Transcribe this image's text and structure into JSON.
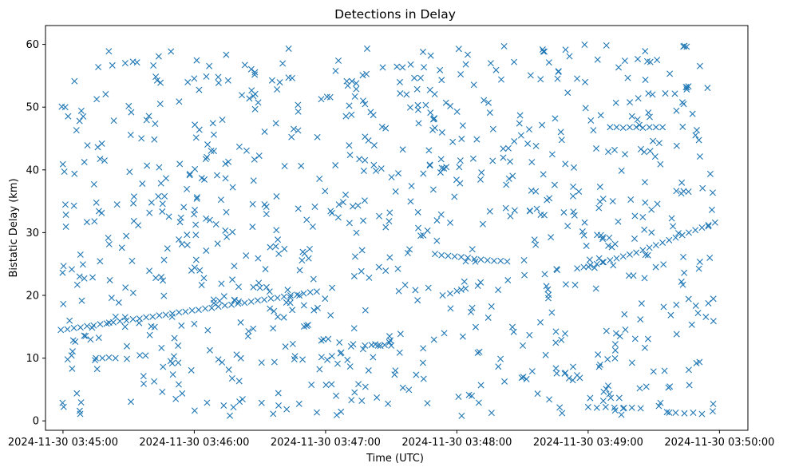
{
  "chart_data": {
    "type": "scatter",
    "title": "Detections in Delay",
    "xlabel": "Time (UTC)",
    "ylabel": "Bistatic Delay (km)",
    "x_ticks": [
      "2024-11-30 03:45:00",
      "2024-11-30 03:46:00",
      "2024-11-30 03:47:00",
      "2024-11-30 03:48:00",
      "2024-11-30 03:49:00",
      "2024-11-30 03:50:00"
    ],
    "y_ticks": [
      0,
      10,
      20,
      30,
      40,
      50,
      60
    ],
    "xlim": [
      "2024-11-30 03:44:52",
      "2024-11-30 03:50:13"
    ],
    "ylim": [
      -1.5,
      63
    ],
    "marker": "x",
    "color": "#1f77b4",
    "grid": false,
    "series": [
      {
        "description": "main target track (bistatic delay rising over time)",
        "points": [
          [
            "03:44:59",
            14.5
          ],
          [
            "03:45:02",
            14.6
          ],
          [
            "03:45:05",
            14.8
          ],
          [
            "03:45:08",
            14.9
          ],
          [
            "03:45:11",
            15.1
          ],
          [
            "03:45:14",
            15.2
          ],
          [
            "03:45:17",
            15.4
          ],
          [
            "03:45:20",
            15.5
          ],
          [
            "03:45:23",
            15.7
          ],
          [
            "03:45:26",
            15.9
          ],
          [
            "03:45:29",
            16.0
          ],
          [
            "03:45:32",
            16.2
          ],
          [
            "03:45:35",
            16.3
          ],
          [
            "03:45:38",
            16.5
          ],
          [
            "03:45:41",
            16.6
          ],
          [
            "03:45:44",
            16.8
          ],
          [
            "03:45:47",
            16.9
          ],
          [
            "03:45:50",
            17.1
          ],
          [
            "03:45:53",
            17.3
          ],
          [
            "03:45:56",
            17.4
          ],
          [
            "03:45:59",
            17.6
          ],
          [
            "03:46:02",
            17.7
          ],
          [
            "03:46:05",
            17.9
          ],
          [
            "03:46:08",
            18.0
          ],
          [
            "03:46:11",
            18.2
          ],
          [
            "03:46:14",
            18.4
          ],
          [
            "03:46:17",
            18.5
          ],
          [
            "03:46:20",
            18.7
          ],
          [
            "03:46:23",
            18.8
          ],
          [
            "03:46:26",
            19.0
          ],
          [
            "03:46:29",
            19.2
          ],
          [
            "03:46:32",
            19.3
          ],
          [
            "03:46:35",
            19.5
          ],
          [
            "03:46:38",
            19.6
          ],
          [
            "03:46:41",
            19.8
          ],
          [
            "03:46:44",
            20.0
          ],
          [
            "03:46:47",
            20.1
          ],
          [
            "03:46:50",
            20.3
          ],
          [
            "03:46:53",
            20.5
          ],
          [
            "03:46:56",
            20.6
          ],
          [
            "03:47:50",
            26.6
          ],
          [
            "03:47:53",
            26.4
          ],
          [
            "03:47:56",
            26.3
          ],
          [
            "03:47:59",
            26.2
          ],
          [
            "03:48:02",
            26.1
          ],
          [
            "03:48:05",
            26.0
          ],
          [
            "03:48:08",
            25.8
          ],
          [
            "03:48:11",
            25.7
          ],
          [
            "03:48:14",
            25.6
          ],
          [
            "03:48:17",
            25.5
          ],
          [
            "03:48:20",
            25.5
          ],
          [
            "03:48:23",
            25.4
          ],
          [
            "03:48:55",
            24.3
          ],
          [
            "03:48:58",
            24.5
          ],
          [
            "03:49:01",
            24.8
          ],
          [
            "03:49:04",
            25.0
          ],
          [
            "03:49:07",
            25.3
          ],
          [
            "03:49:10",
            25.6
          ],
          [
            "03:49:13",
            25.9
          ],
          [
            "03:49:16",
            26.2
          ],
          [
            "03:49:19",
            26.5
          ],
          [
            "03:49:22",
            26.8
          ],
          [
            "03:49:25",
            27.2
          ],
          [
            "03:49:28",
            27.6
          ],
          [
            "03:49:31",
            28.0
          ],
          [
            "03:49:34",
            28.4
          ],
          [
            "03:49:37",
            28.8
          ],
          [
            "03:49:40",
            29.2
          ],
          [
            "03:49:43",
            29.6
          ],
          [
            "03:49:46",
            30.0
          ],
          [
            "03:49:49",
            30.4
          ],
          [
            "03:49:52",
            30.8
          ],
          [
            "03:49:55",
            31.2
          ],
          [
            "03:49:58",
            31.6
          ]
        ]
      },
      {
        "description": "secondary clusters",
        "points": [
          [
            "03:45:15",
            10.0
          ],
          [
            "03:45:18",
            10.0
          ],
          [
            "03:45:21",
            10.1
          ],
          [
            "03:45:24",
            10.0
          ],
          [
            "03:46:27",
            21.3
          ],
          [
            "03:46:30",
            21.2
          ],
          [
            "03:46:33",
            21.3
          ],
          [
            "03:47:18",
            12.0
          ],
          [
            "03:47:21",
            12.1
          ],
          [
            "03:47:24",
            12.0
          ],
          [
            "03:47:27",
            12.1
          ],
          [
            "03:47:30",
            12.0
          ],
          [
            "03:49:10",
            46.8
          ],
          [
            "03:49:13",
            46.8
          ],
          [
            "03:49:16",
            46.7
          ],
          [
            "03:49:19",
            46.8
          ],
          [
            "03:49:22",
            46.8
          ],
          [
            "03:49:25",
            46.7
          ],
          [
            "03:49:28",
            46.8
          ],
          [
            "03:49:31",
            46.8
          ],
          [
            "03:49:34",
            46.8
          ],
          [
            "03:49:00",
            2.2
          ],
          [
            "03:49:04",
            2.1
          ],
          [
            "03:49:08",
            2.2
          ],
          [
            "03:49:12",
            2.1
          ],
          [
            "03:49:16",
            2.0
          ],
          [
            "03:49:20",
            2.1
          ],
          [
            "03:49:24",
            2.0
          ],
          [
            "03:49:36",
            1.4
          ],
          [
            "03:49:40",
            1.3
          ],
          [
            "03:49:44",
            1.2
          ],
          [
            "03:49:48",
            1.3
          ],
          [
            "03:49:52",
            1.1
          ],
          [
            "03:48:00",
            20.7
          ],
          [
            "03:48:02",
            20.9
          ],
          [
            "03:48:04",
            21.1
          ],
          [
            "03:47:47",
            21.2
          ],
          [
            "03:47:03",
            21.2
          ]
        ]
      }
    ],
    "clutter": {
      "description": "random false detections spread across the whole plot area",
      "time_range": [
        "2024-11-30 03:44:59",
        "2024-11-30 03:49:59"
      ],
      "delay_range": [
        0.8,
        60.0
      ],
      "approx_count": 850
    }
  }
}
